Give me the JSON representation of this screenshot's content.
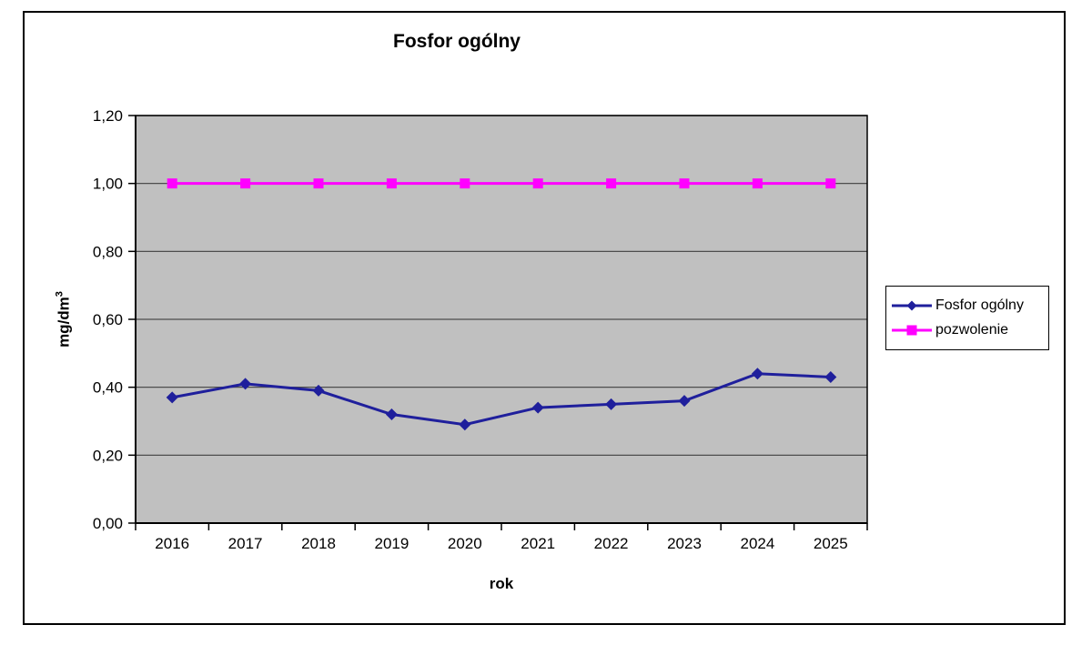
{
  "chart": {
    "ylabel_base": "mg/dm",
    "ylabel_sup": "3"
  },
  "chart_data": {
    "type": "line",
    "title": "Fosfor ogólny",
    "xlabel": "rok",
    "ylabel": "mg/dm³",
    "categories": [
      "2016",
      "2017",
      "2018",
      "2019",
      "2020",
      "2021",
      "2022",
      "2023",
      "2024",
      "2025"
    ],
    "series": [
      {
        "name": "Fosfor ogólny",
        "color": "#1f1f9c",
        "marker": "diamond",
        "values": [
          0.37,
          0.41,
          0.39,
          0.32,
          0.29,
          0.34,
          0.35,
          0.36,
          0.44,
          0.43
        ]
      },
      {
        "name": "pozwolenie",
        "color": "#ff00ff",
        "marker": "square",
        "values": [
          1.0,
          1.0,
          1.0,
          1.0,
          1.0,
          1.0,
          1.0,
          1.0,
          1.0,
          1.0
        ]
      }
    ],
    "ylim": [
      0.0,
      1.2
    ],
    "y_tick_step": 0.2,
    "y_tick_labels": [
      "0,00",
      "0,20",
      "0,40",
      "0,60",
      "0,80",
      "1,00",
      "1,20"
    ],
    "grid": true,
    "legend_position": "right",
    "plot_bg": "#c0c0c0",
    "grid_color": "#4d4d4d",
    "axis_color": "#000000"
  }
}
